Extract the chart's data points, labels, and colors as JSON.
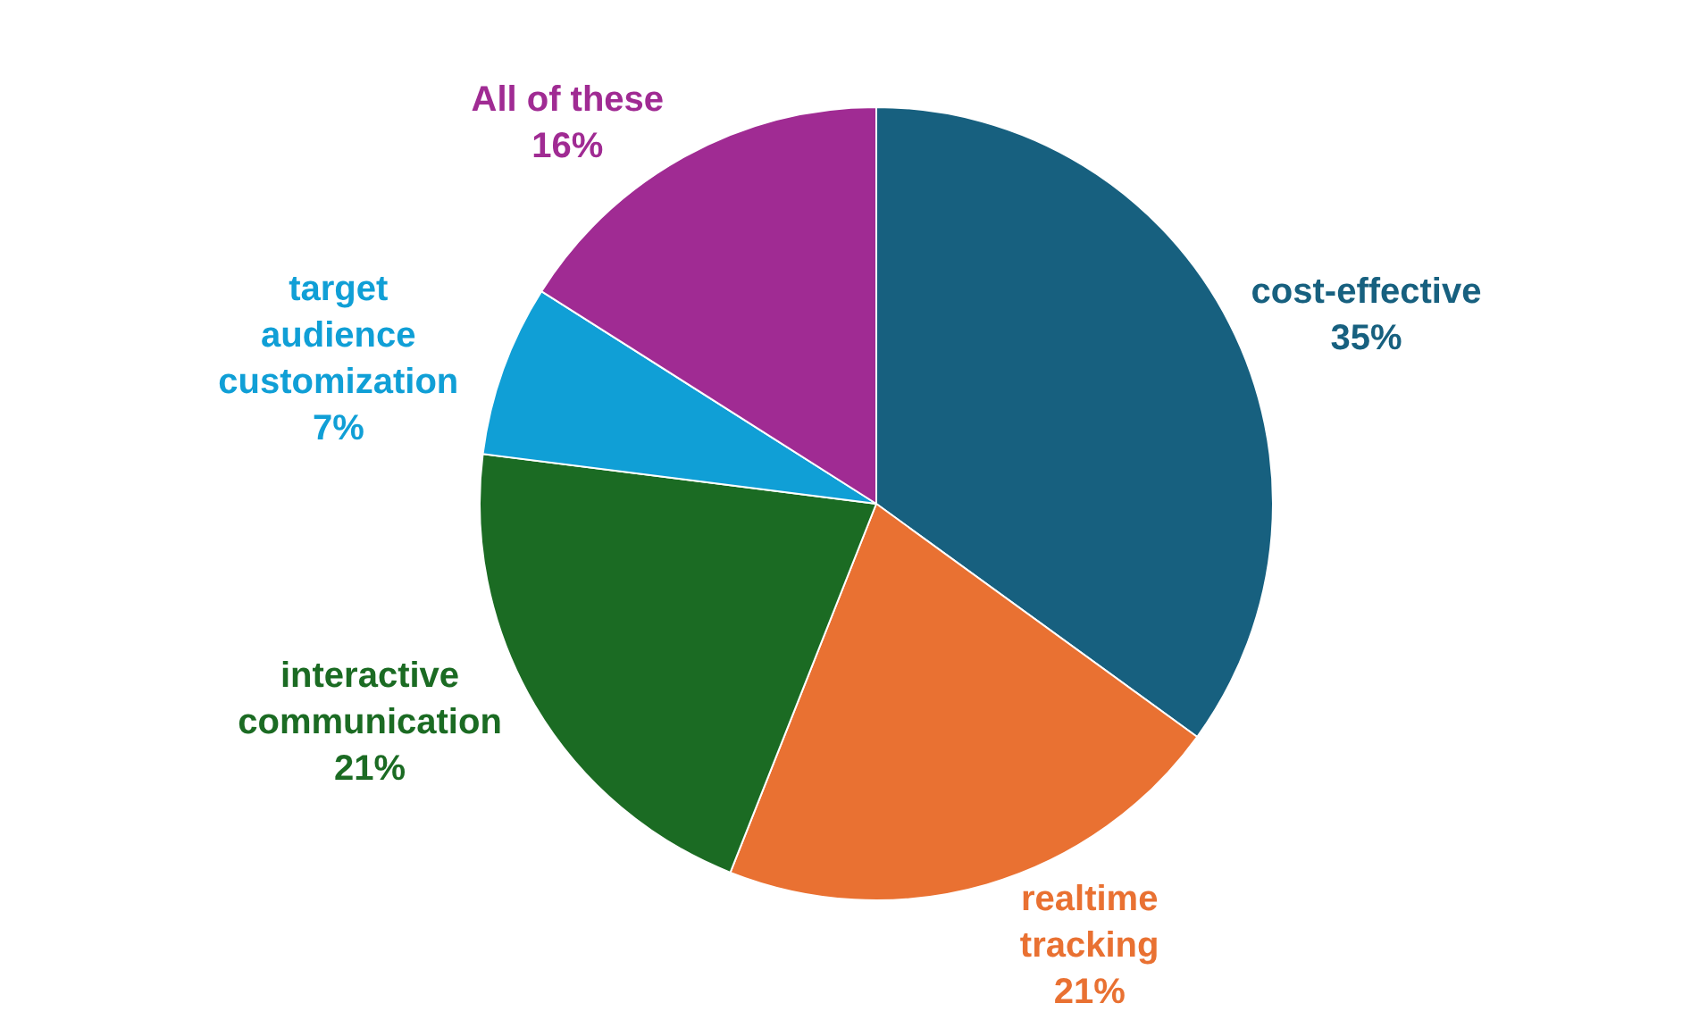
{
  "chart_data": {
    "type": "pie",
    "categories": [
      "cost-effective",
      "realtime tracking",
      "interactive communication",
      "target audience customization",
      "All of these"
    ],
    "values": [
      35,
      21,
      21,
      7,
      16
    ],
    "value_labels": [
      "35%",
      "21%",
      "21%",
      "7%",
      "16%"
    ],
    "colors": [
      "#17607f",
      "#e97132",
      "#1b6b23",
      "#109fd6",
      "#a02b93"
    ]
  }
}
